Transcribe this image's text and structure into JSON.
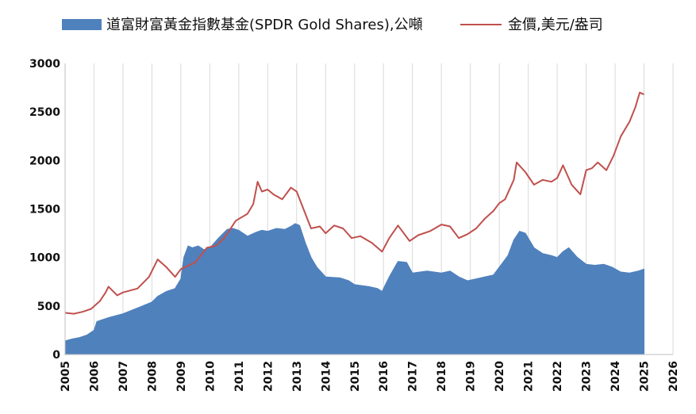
{
  "chart_data": {
    "type": "area",
    "title": "",
    "xlabel": "",
    "ylabel": "",
    "xlim": [
      2005,
      2026
    ],
    "ylim": [
      0,
      3000
    ],
    "yticks": [
      0,
      500,
      1000,
      1500,
      2000,
      2500,
      3000
    ],
    "xticks": [
      2005,
      2006,
      2007,
      2008,
      2009,
      2010,
      2011,
      2012,
      2013,
      2014,
      2015,
      2016,
      2017,
      2018,
      2019,
      2020,
      2021,
      2022,
      2023,
      2024,
      2025,
      2026
    ],
    "grid": "vertical",
    "legend": "top",
    "series": [
      {
        "name": "道富財富黃金指數基金(SPDR Gold Shares),公噸",
        "kind": "area",
        "color": "#4f81bd",
        "x": [
          2005.0,
          2005.25,
          2005.5,
          2005.75,
          2006.0,
          2006.1,
          2006.5,
          2007.0,
          2007.5,
          2008.0,
          2008.2,
          2008.5,
          2008.8,
          2009.0,
          2009.1,
          2009.25,
          2009.4,
          2009.6,
          2009.8,
          2010.0,
          2010.3,
          2010.6,
          2010.8,
          2011.0,
          2011.3,
          2011.6,
          2011.8,
          2012.0,
          2012.3,
          2012.6,
          2012.8,
          2012.95,
          2013.1,
          2013.3,
          2013.5,
          2013.7,
          2014.0,
          2014.5,
          2014.8,
          2015.0,
          2015.5,
          2015.8,
          2015.95,
          2016.2,
          2016.5,
          2016.8,
          2017.0,
          2017.5,
          2018.0,
          2018.3,
          2018.6,
          2018.9,
          2019.2,
          2019.5,
          2019.8,
          2020.0,
          2020.3,
          2020.5,
          2020.7,
          2020.9,
          2021.2,
          2021.5,
          2021.8,
          2022.0,
          2022.2,
          2022.4,
          2022.7,
          2023.0,
          2023.3,
          2023.6,
          2023.9,
          2024.2,
          2024.5,
          2024.8,
          2025.0
        ],
        "values": [
          140,
          160,
          175,
          200,
          250,
          340,
          380,
          420,
          480,
          540,
          600,
          650,
          680,
          780,
          1000,
          1120,
          1100,
          1120,
          1080,
          1100,
          1200,
          1290,
          1300,
          1280,
          1220,
          1260,
          1280,
          1270,
          1300,
          1290,
          1320,
          1350,
          1330,
          1150,
          1000,
          900,
          800,
          790,
          760,
          720,
          700,
          680,
          650,
          800,
          960,
          950,
          840,
          860,
          840,
          860,
          800,
          760,
          780,
          800,
          820,
          900,
          1020,
          1180,
          1270,
          1250,
          1100,
          1040,
          1020,
          1000,
          1060,
          1100,
          1000,
          930,
          920,
          930,
          900,
          850,
          840,
          860,
          880
        ]
      },
      {
        "name": "金價,美元/盎司",
        "kind": "line",
        "color": "#c0504d",
        "x": [
          2005.0,
          2005.3,
          2005.6,
          2005.9,
          2006.2,
          2006.4,
          2006.5,
          2006.8,
          2007.0,
          2007.5,
          2007.9,
          2008.2,
          2008.5,
          2008.8,
          2009.0,
          2009.5,
          2009.9,
          2010.2,
          2010.5,
          2010.9,
          2011.3,
          2011.5,
          2011.65,
          2011.8,
          2012.0,
          2012.2,
          2012.5,
          2012.8,
          2013.0,
          2013.3,
          2013.5,
          2013.8,
          2014.0,
          2014.3,
          2014.6,
          2014.9,
          2015.2,
          2015.6,
          2015.95,
          2016.2,
          2016.5,
          2016.9,
          2017.2,
          2017.6,
          2018.0,
          2018.3,
          2018.6,
          2018.9,
          2019.2,
          2019.5,
          2019.8,
          2020.0,
          2020.2,
          2020.5,
          2020.6,
          2020.9,
          2021.2,
          2021.5,
          2021.8,
          2022.0,
          2022.2,
          2022.5,
          2022.8,
          2023.0,
          2023.2,
          2023.4,
          2023.7,
          2023.95,
          2024.2,
          2024.5,
          2024.7,
          2024.85,
          2025.0
        ],
        "values": [
          430,
          420,
          440,
          470,
          550,
          640,
          700,
          610,
          640,
          680,
          800,
          980,
          900,
          800,
          880,
          950,
          1100,
          1120,
          1200,
          1380,
          1450,
          1550,
          1780,
          1680,
          1700,
          1650,
          1600,
          1720,
          1680,
          1450,
          1300,
          1320,
          1250,
          1330,
          1300,
          1200,
          1220,
          1150,
          1060,
          1200,
          1330,
          1170,
          1230,
          1270,
          1340,
          1320,
          1200,
          1240,
          1300,
          1400,
          1480,
          1560,
          1600,
          1800,
          1980,
          1880,
          1750,
          1800,
          1780,
          1820,
          1950,
          1750,
          1650,
          1900,
          1920,
          1980,
          1900,
          2050,
          2250,
          2400,
          2550,
          2700,
          2680
        ]
      }
    ]
  }
}
